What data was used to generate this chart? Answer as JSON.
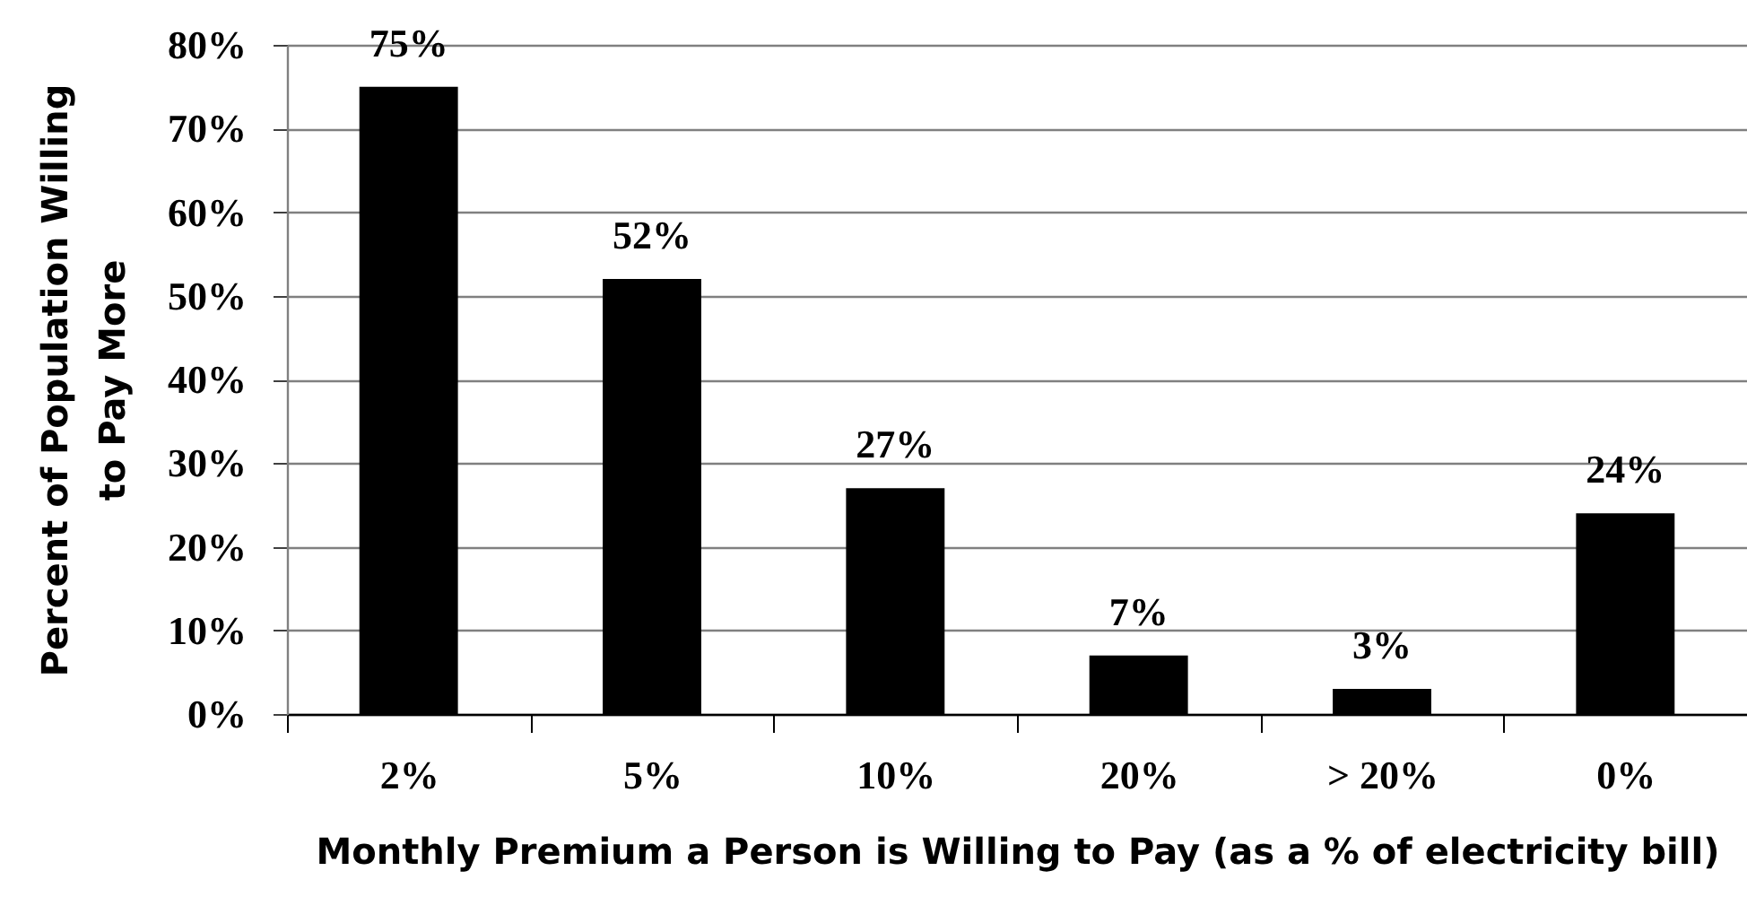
{
  "chart_data": {
    "type": "bar",
    "xlabel": "Monthly Premium a Person is Willing to Pay (as a % of electricity bill)",
    "ylabel": "Percent of Population Willing to Pay More",
    "categories": [
      "2%",
      "5%",
      "10%",
      "20%",
      "> 20%",
      "0%"
    ],
    "values": [
      75,
      52,
      27,
      7,
      3,
      24
    ],
    "value_labels": [
      "75%",
      "52%",
      "27%",
      "7%",
      "3%",
      "24%"
    ],
    "color": "#000000",
    "ylim": [
      0,
      80
    ],
    "yticks": [
      {
        "value": 0,
        "label": "0%"
      },
      {
        "value": 10,
        "label": "10%"
      },
      {
        "value": 20,
        "label": "20%"
      },
      {
        "value": 30,
        "label": "30%"
      },
      {
        "value": 40,
        "label": "40%"
      },
      {
        "value": 50,
        "label": "50%"
      },
      {
        "value": 60,
        "label": "60%"
      },
      {
        "value": 70,
        "label": "70%"
      },
      {
        "value": 80,
        "label": "80%"
      }
    ],
    "grid": "y"
  }
}
